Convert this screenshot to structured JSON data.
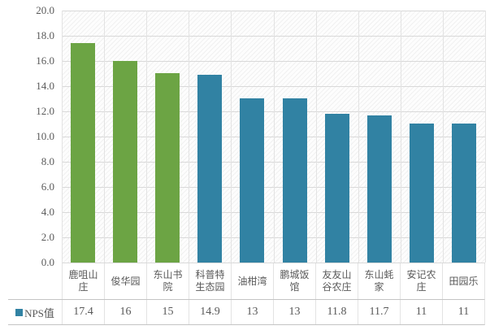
{
  "chart_data": {
    "type": "bar",
    "categories": [
      "鹿咀山庄",
      "俊华园",
      "东山书院",
      "科普特生态园",
      "油柑湾",
      "鹏城饭馆",
      "友友山谷农庄",
      "东山蚝家",
      "安记农庄",
      "田园乐"
    ],
    "series": [
      {
        "name": "NPS值",
        "values": [
          17.4,
          16,
          15,
          14.9,
          13,
          13,
          11.8,
          11.7,
          11,
          11
        ]
      }
    ],
    "value_labels": [
      "17.4",
      "16",
      "15",
      "14.9",
      "13",
      "13",
      "11.8",
      "11.7",
      "11",
      "11"
    ],
    "title": "",
    "xlabel": "",
    "ylabel": "",
    "ylim": [
      0,
      20
    ],
    "ytick_step": 2,
    "ytick_labels": [
      "20.0",
      "18.0",
      "16.0",
      "14.0",
      "12.0",
      "10.0",
      "8.0",
      "6.0",
      "4.0",
      "2.0",
      "0.0"
    ],
    "grid": true,
    "legend_position": "bottom-table",
    "bar_colors": [
      "#6ca444",
      "#6ca444",
      "#6ca444",
      "#3182a3",
      "#3182a3",
      "#3182a3",
      "#3182a3",
      "#3182a3",
      "#3182a3",
      "#3182a3"
    ],
    "colors": {
      "green_bar": "#6ca444",
      "teal_bar": "#3182a3",
      "text": "#595959",
      "gridline": "#d9d9d9",
      "table_border": "#c4c4c4"
    }
  },
  "legend": {
    "label": "NPS值",
    "marker_color": "#3182a3"
  }
}
